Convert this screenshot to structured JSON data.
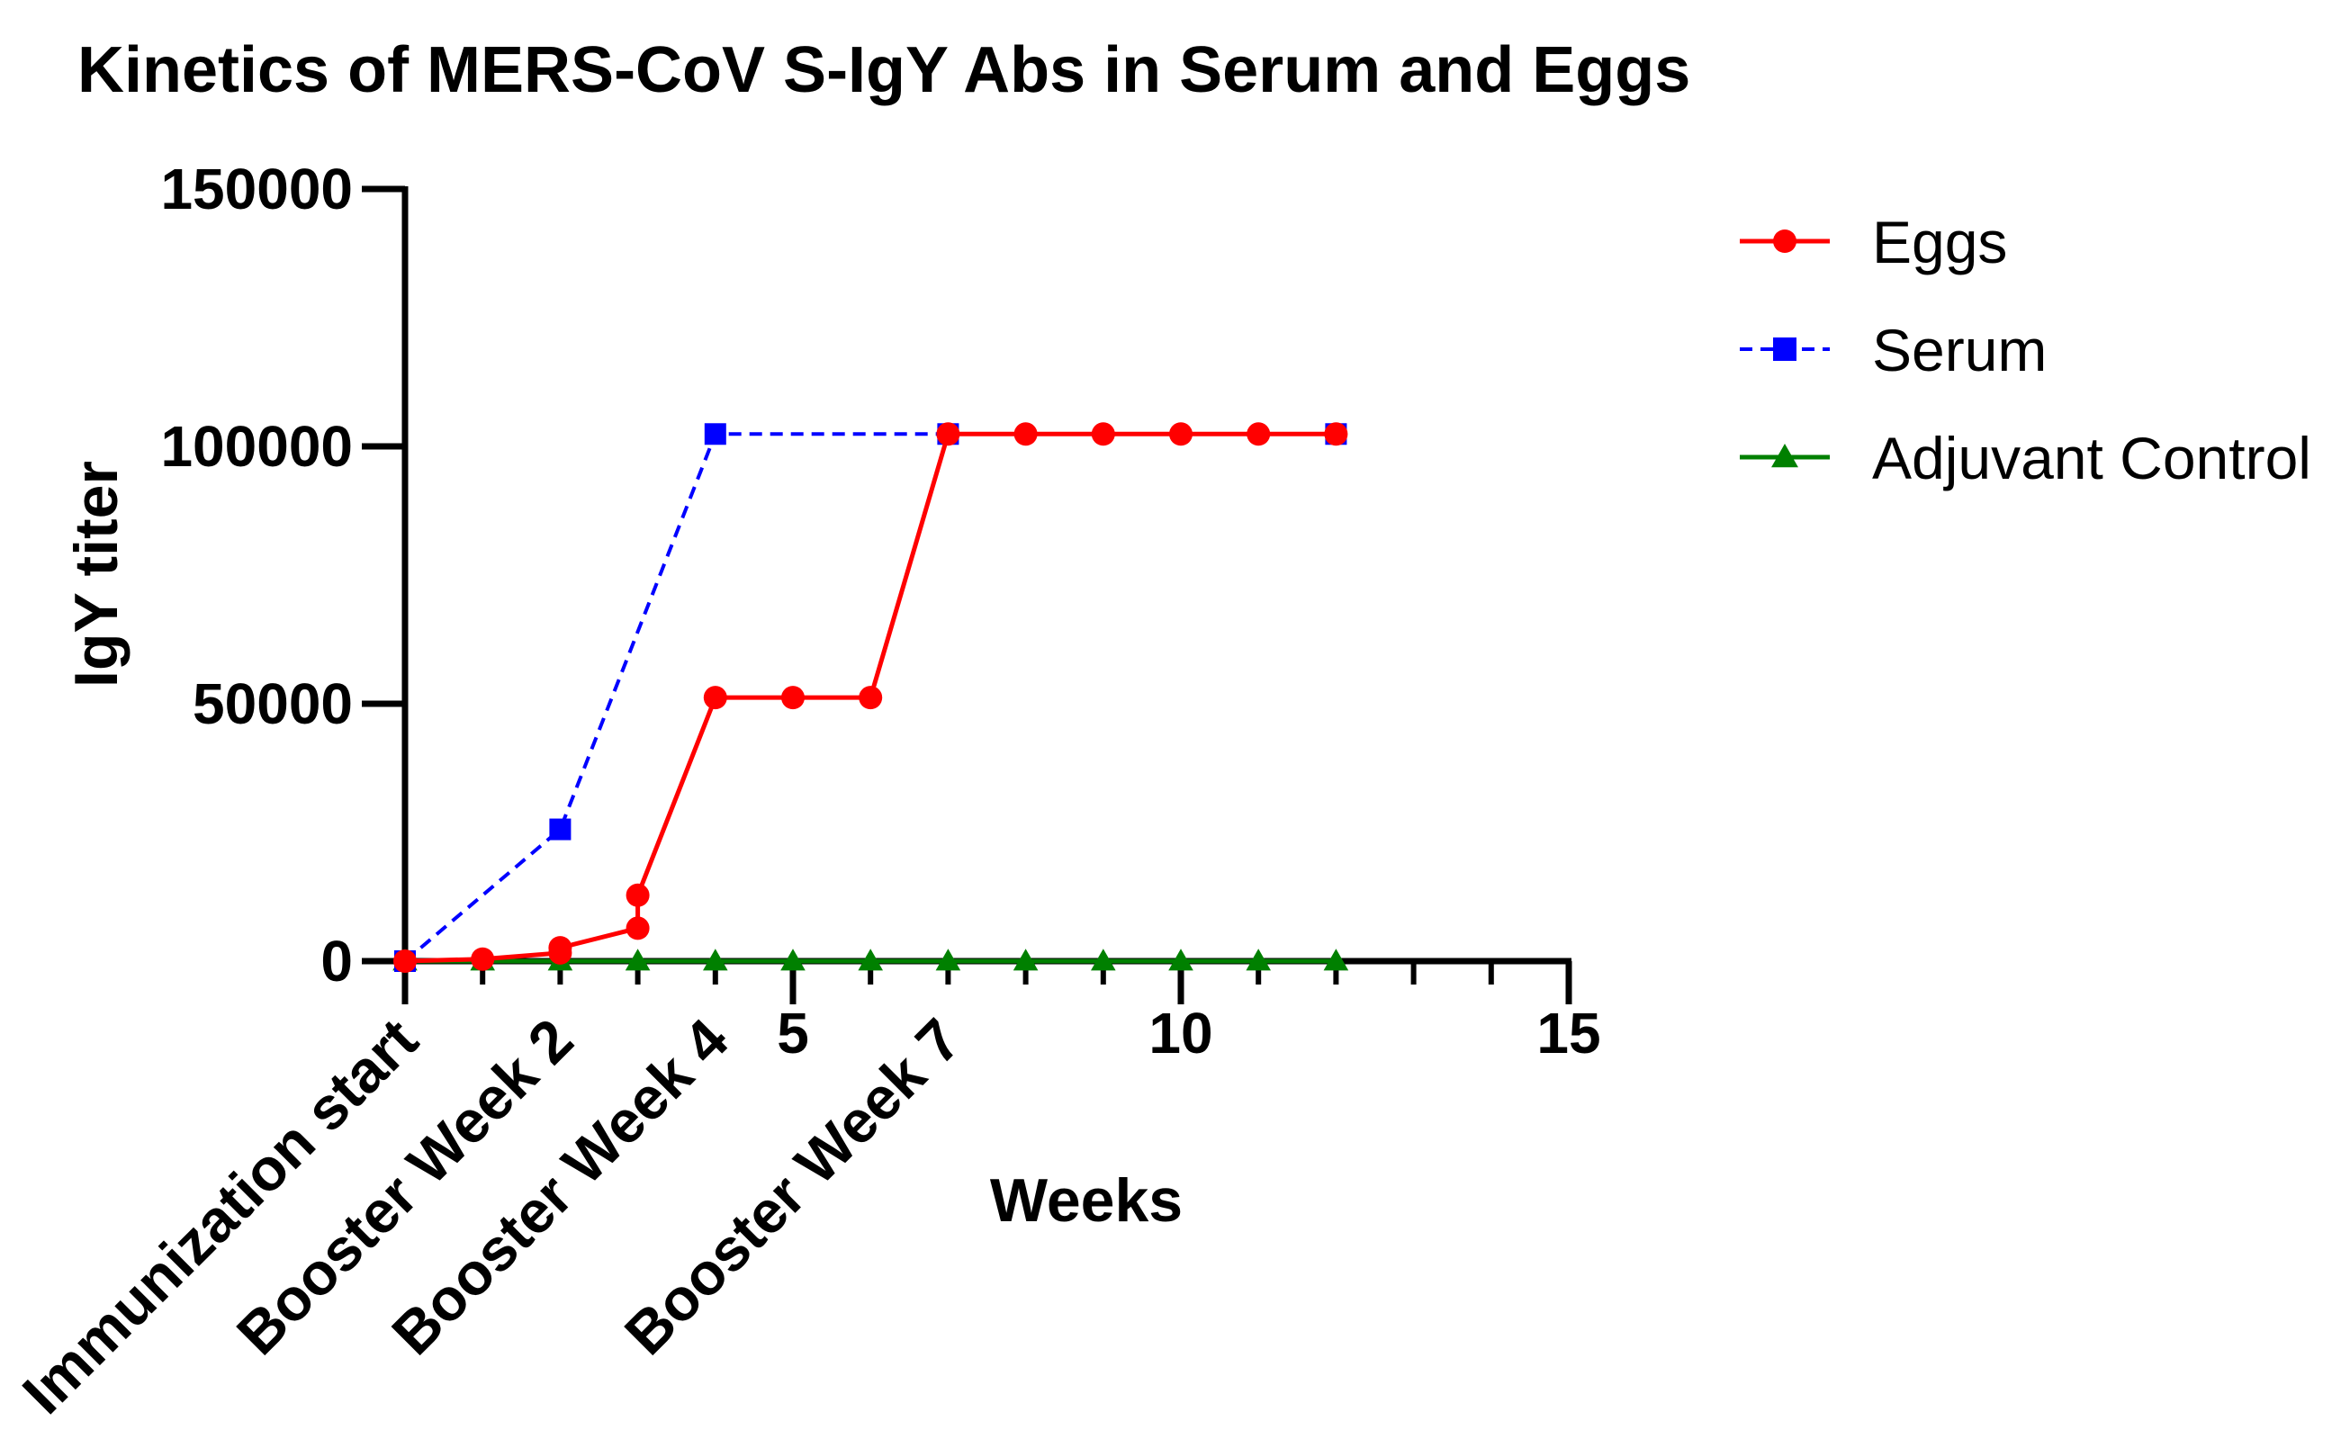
{
  "chart_data": {
    "type": "line",
    "title": "Kinetics of MERS-CoV S-IgY Abs in Serum and Eggs",
    "xlabel": "Weeks",
    "ylabel": "IgY titer",
    "xlim": [
      0,
      15
    ],
    "ylim": [
      0,
      150000
    ],
    "x_ticks": [
      5,
      10,
      15
    ],
    "x_minor_ticks": [
      1,
      2,
      3,
      4,
      6,
      7,
      8,
      9,
      11,
      12,
      13,
      14
    ],
    "y_ticks": [
      0,
      50000,
      100000,
      150000
    ],
    "grid": false,
    "legend_position": "top-right",
    "annotations": [
      {
        "x": 0,
        "text": "Immunization start"
      },
      {
        "x": 2,
        "text": "Booster Week 2"
      },
      {
        "x": 4,
        "text": "Booster Week 4"
      },
      {
        "x": 7,
        "text": "Booster Week 7"
      }
    ],
    "series": [
      {
        "name": "Eggs",
        "color": "#ff0000",
        "line_style": "solid",
        "marker": "circle",
        "points": [
          [
            0,
            0
          ],
          [
            1,
            400
          ],
          [
            2,
            1600
          ],
          [
            2,
            2600
          ],
          [
            3,
            6400
          ],
          [
            3,
            12800
          ],
          [
            4,
            51200
          ],
          [
            5,
            51200
          ],
          [
            6,
            51200
          ],
          [
            7,
            102400
          ],
          [
            8,
            102400
          ],
          [
            9,
            102400
          ],
          [
            10,
            102400
          ],
          [
            11,
            102400
          ],
          [
            12,
            102400
          ]
        ]
      },
      {
        "name": "Serum",
        "color": "#0000ff",
        "line_style": "dashed",
        "marker": "square",
        "points": [
          [
            0,
            0
          ],
          [
            2,
            25600
          ],
          [
            4,
            102400
          ],
          [
            7,
            102400
          ],
          [
            12,
            102400
          ]
        ]
      },
      {
        "name": "Adjuvant Control",
        "color": "#008000",
        "line_style": "solid",
        "marker": "triangle",
        "points": [
          [
            0,
            0
          ],
          [
            1,
            0
          ],
          [
            2,
            0
          ],
          [
            3,
            0
          ],
          [
            4,
            0
          ],
          [
            5,
            0
          ],
          [
            6,
            0
          ],
          [
            7,
            0
          ],
          [
            8,
            0
          ],
          [
            9,
            0
          ],
          [
            10,
            0
          ],
          [
            11,
            0
          ],
          [
            12,
            0
          ]
        ]
      }
    ]
  }
}
